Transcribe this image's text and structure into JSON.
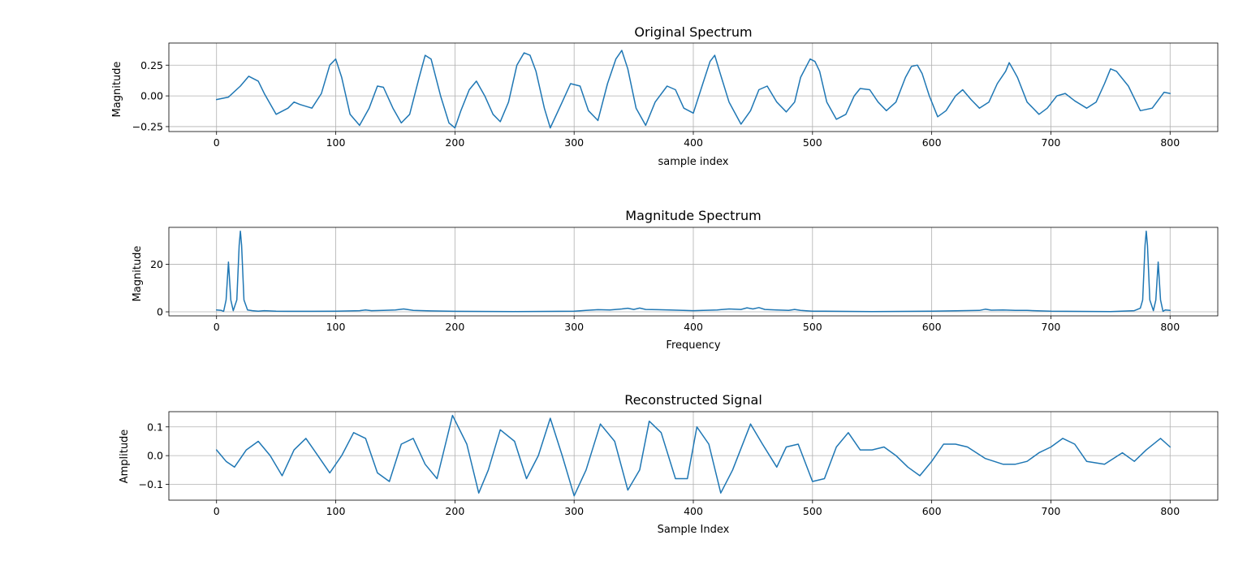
{
  "theme": {
    "line_color": "#1f77b4",
    "grid_color": "#b0b0b0"
  },
  "chart_data": [
    {
      "type": "line",
      "title": "Original Spectrum",
      "xlabel": "sample index",
      "ylabel": "Magnitude",
      "xlim": [
        -40,
        840
      ],
      "ylim": [
        -0.29,
        0.43
      ],
      "xticks": [
        0,
        100,
        200,
        300,
        400,
        500,
        600,
        700,
        800
      ],
      "yticks": [
        -0.25,
        0.0,
        0.25
      ],
      "ytick_labels": [
        "−0.25",
        "0.00",
        "0.25"
      ],
      "grid": true,
      "series": [
        {
          "x": [
            0,
            10,
            20,
            27,
            35,
            40,
            50,
            60,
            65,
            70,
            80,
            88,
            95,
            100,
            105,
            112,
            120,
            128,
            135,
            140,
            148,
            155,
            162,
            170,
            175,
            180,
            188,
            195,
            200,
            205,
            212,
            218,
            225,
            232,
            238,
            245,
            252,
            258,
            263,
            268,
            275,
            280,
            290,
            297,
            305,
            312,
            320,
            328,
            335,
            340,
            345,
            352,
            360,
            368,
            378,
            385,
            392,
            400,
            408,
            414,
            418,
            422,
            430,
            440,
            448,
            455,
            462,
            470,
            478,
            485,
            490,
            498,
            502,
            506,
            512,
            520,
            528,
            535,
            540,
            548,
            555,
            562,
            570,
            578,
            583,
            588,
            592,
            598,
            605,
            612,
            620,
            626,
            633,
            640,
            648,
            655,
            662,
            665,
            668,
            672,
            680,
            690,
            697,
            705,
            712,
            720,
            730,
            738,
            745,
            750,
            755,
            765,
            775,
            785,
            795,
            800
          ],
          "values": [
            -0.03,
            -0.01,
            0.08,
            0.16,
            0.12,
            0.02,
            -0.15,
            -0.1,
            -0.05,
            -0.07,
            -0.1,
            0.02,
            0.25,
            0.3,
            0.15,
            -0.15,
            -0.24,
            -0.1,
            0.08,
            0.07,
            -0.1,
            -0.22,
            -0.15,
            0.15,
            0.33,
            0.3,
            0.0,
            -0.22,
            -0.26,
            -0.12,
            0.05,
            0.12,
            0.0,
            -0.15,
            -0.21,
            -0.05,
            0.25,
            0.35,
            0.33,
            0.2,
            -0.1,
            -0.26,
            -0.05,
            0.1,
            0.08,
            -0.12,
            -0.2,
            0.1,
            0.3,
            0.37,
            0.22,
            -0.1,
            -0.24,
            -0.05,
            0.08,
            0.05,
            -0.1,
            -0.14,
            0.1,
            0.28,
            0.33,
            0.2,
            -0.05,
            -0.23,
            -0.12,
            0.05,
            0.08,
            -0.05,
            -0.13,
            -0.05,
            0.15,
            0.3,
            0.28,
            0.2,
            -0.05,
            -0.19,
            -0.15,
            0.0,
            0.06,
            0.05,
            -0.05,
            -0.12,
            -0.05,
            0.15,
            0.24,
            0.25,
            0.18,
            0.0,
            -0.17,
            -0.12,
            0.0,
            0.05,
            -0.03,
            -0.1,
            -0.05,
            0.1,
            0.2,
            0.27,
            0.22,
            0.15,
            -0.05,
            -0.15,
            -0.1,
            0.0,
            0.02,
            -0.04,
            -0.1,
            -0.05,
            0.1,
            0.22,
            0.2,
            0.08,
            -0.12,
            -0.1,
            0.03,
            0.02
          ]
        }
      ]
    },
    {
      "type": "line",
      "title": "Magnitude Spectrum",
      "xlabel": "Frequency",
      "ylabel": "Magnitude",
      "xlim": [
        -40,
        840
      ],
      "ylim": [
        -1.7,
        35.6
      ],
      "xticks": [
        0,
        100,
        200,
        300,
        400,
        500,
        600,
        700,
        800
      ],
      "yticks": [
        0,
        20
      ],
      "ytick_labels": [
        "0",
        "20"
      ],
      "grid": true,
      "series": [
        {
          "x": [
            0,
            4,
            6,
            8,
            10,
            12,
            14,
            17,
            19,
            20,
            21,
            23,
            26,
            30,
            35,
            40,
            50,
            60,
            80,
            100,
            120,
            125,
            130,
            140,
            150,
            157,
            165,
            180,
            200,
            250,
            300,
            310,
            320,
            330,
            340,
            345,
            350,
            355,
            360,
            370,
            380,
            400,
            420,
            430,
            440,
            445,
            450,
            455,
            460,
            470,
            480,
            485,
            490,
            500,
            550,
            600,
            640,
            645,
            650,
            660,
            670,
            680,
            700,
            750,
            770,
            775,
            777,
            779,
            780,
            781,
            783,
            786,
            788,
            790,
            792,
            794,
            796,
            800
          ],
          "values": [
            0.8,
            0.6,
            0.2,
            5,
            21,
            5,
            0.5,
            5,
            28,
            34,
            28,
            5,
            0.8,
            0.5,
            0.3,
            0.5,
            0.3,
            0.2,
            0.2,
            0.3,
            0.5,
            0.8,
            0.5,
            0.6,
            0.8,
            1.2,
            0.6,
            0.4,
            0.2,
            0.1,
            0.3,
            0.6,
            0.9,
            0.8,
            1.2,
            1.5,
            1.0,
            1.6,
            1.0,
            0.9,
            0.8,
            0.5,
            0.8,
            1.2,
            1.0,
            1.7,
            1.2,
            1.8,
            1.0,
            0.8,
            0.6,
            1.0,
            0.6,
            0.3,
            0.1,
            0.3,
            0.6,
            1.1,
            0.7,
            0.8,
            0.6,
            0.6,
            0.3,
            0.1,
            0.5,
            1.5,
            5,
            28,
            34,
            28,
            5,
            0.5,
            5,
            21,
            5,
            0.2,
            0.8,
            0.6
          ]
        }
      ]
    },
    {
      "type": "line",
      "title": "Reconstructed Signal",
      "xlabel": "Sample Index",
      "ylabel": "Amplitude",
      "xlim": [
        -40,
        840
      ],
      "ylim": [
        -0.155,
        0.153
      ],
      "xticks": [
        0,
        100,
        200,
        300,
        400,
        500,
        600,
        700,
        800
      ],
      "yticks": [
        -0.1,
        0.0,
        0.1
      ],
      "ytick_labels": [
        "−0.1",
        "0.0",
        "0.1"
      ],
      "grid": true,
      "series": [
        {
          "x": [
            0,
            8,
            15,
            25,
            35,
            45,
            55,
            65,
            75,
            85,
            95,
            105,
            115,
            125,
            135,
            145,
            155,
            165,
            175,
            185,
            198,
            210,
            220,
            228,
            238,
            250,
            260,
            270,
            280,
            290,
            300,
            310,
            322,
            334,
            345,
            355,
            363,
            373,
            385,
            395,
            403,
            413,
            423,
            433,
            448,
            458,
            470,
            478,
            488,
            500,
            510,
            520,
            530,
            540,
            550,
            560,
            570,
            580,
            590,
            600,
            610,
            620,
            630,
            645,
            660,
            670,
            680,
            690,
            700,
            710,
            720,
            730,
            745,
            760,
            770,
            780,
            792,
            800
          ],
          "values": [
            0.02,
            -0.02,
            -0.04,
            0.02,
            0.05,
            0.0,
            -0.07,
            0.02,
            0.06,
            0.0,
            -0.06,
            0.0,
            0.08,
            0.06,
            -0.06,
            -0.09,
            0.04,
            0.06,
            -0.03,
            -0.08,
            0.14,
            0.04,
            -0.13,
            -0.05,
            0.09,
            0.05,
            -0.08,
            0.0,
            0.13,
            0.0,
            -0.14,
            -0.05,
            0.11,
            0.05,
            -0.12,
            -0.05,
            0.12,
            0.08,
            -0.08,
            -0.08,
            0.1,
            0.04,
            -0.13,
            -0.05,
            0.11,
            0.04,
            -0.04,
            0.03,
            0.04,
            -0.09,
            -0.08,
            0.03,
            0.08,
            0.02,
            0.02,
            0.03,
            0.0,
            -0.04,
            -0.07,
            -0.02,
            0.04,
            0.04,
            0.03,
            -0.01,
            -0.03,
            -0.03,
            -0.02,
            0.01,
            0.03,
            0.06,
            0.04,
            -0.02,
            -0.03,
            0.01,
            -0.02,
            0.02,
            0.06,
            0.03
          ]
        }
      ]
    }
  ]
}
